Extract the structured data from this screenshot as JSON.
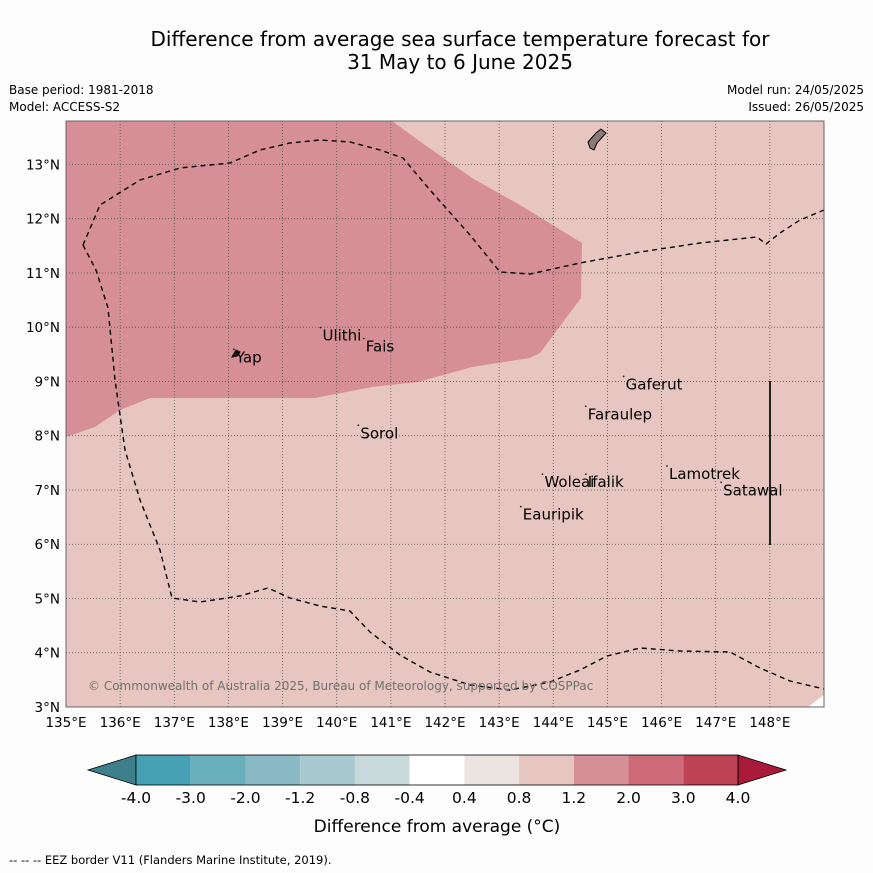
{
  "title_line1": "Difference from average sea surface temperature forecast for",
  "title_line2": "31 May to 6 June 2025",
  "base_period": "Base period: 1981-2018",
  "model": "Model: ACCESS-S2",
  "model_run": "Model run: 24/05/2025",
  "issued": "Issued: 26/05/2025",
  "copyright": "© Commonwealth of Australia 2025, Bureau of Meteorology, supported by COSPPac",
  "footnote": "--  --  -- EEZ border V11 (Flanders Marine Institute, 2019).",
  "map": {
    "lon_range": [
      135,
      149
    ],
    "lat_range": [
      3,
      13.8
    ],
    "lon_ticks": [
      "135°E",
      "136°E",
      "137°E",
      "138°E",
      "139°E",
      "140°E",
      "141°E",
      "142°E",
      "143°E",
      "144°E",
      "145°E",
      "146°E",
      "147°E",
      "148°E"
    ],
    "lat_ticks": [
      "3°N",
      "4°N",
      "5°N",
      "6°N",
      "7°N",
      "8°N",
      "9°N",
      "10°N",
      "11°N",
      "12°N",
      "13°N"
    ],
    "background_color": "#e7c6c2",
    "warm_region_color": "#d68f96",
    "islands": [
      {
        "name": "Yap",
        "lon": 138.1,
        "lat": 9.5
      },
      {
        "name": "Ulithi",
        "lon": 139.7,
        "lat": 9.9
      },
      {
        "name": "Fais",
        "lon": 140.5,
        "lat": 9.7
      },
      {
        "name": "Sorol",
        "lon": 140.4,
        "lat": 8.1
      },
      {
        "name": "Gaferut",
        "lon": 145.3,
        "lat": 9.0
      },
      {
        "name": "Faraulep",
        "lon": 144.6,
        "lat": 8.45
      },
      {
        "name": "Woleai",
        "lon": 143.8,
        "lat": 7.2
      },
      {
        "name": "Ifalik",
        "lon": 144.6,
        "lat": 7.2
      },
      {
        "name": "Lamotrek",
        "lon": 146.1,
        "lat": 7.35
      },
      {
        "name": "Satawal",
        "lon": 147.1,
        "lat": 7.05
      },
      {
        "name": "Eauripik",
        "lon": 143.4,
        "lat": 6.6
      }
    ]
  },
  "colorbar": {
    "label": "Difference from average (°C)",
    "tick_labels": [
      "-4.0",
      "-3.0",
      "-2.0",
      "-1.2",
      "-0.8",
      "-0.4",
      "0.4",
      "0.8",
      "1.2",
      "2.0",
      "3.0",
      "4.0"
    ],
    "colors": [
      "#3e7f8c",
      "#47a1b4",
      "#6aafbc",
      "#8ab9c6",
      "#a9c9d0",
      "#c8d9dc",
      "#ffffff",
      "#ece4e1",
      "#e7c6c2",
      "#d68f96",
      "#cf6a78",
      "#be4355",
      "#a8193a"
    ]
  }
}
